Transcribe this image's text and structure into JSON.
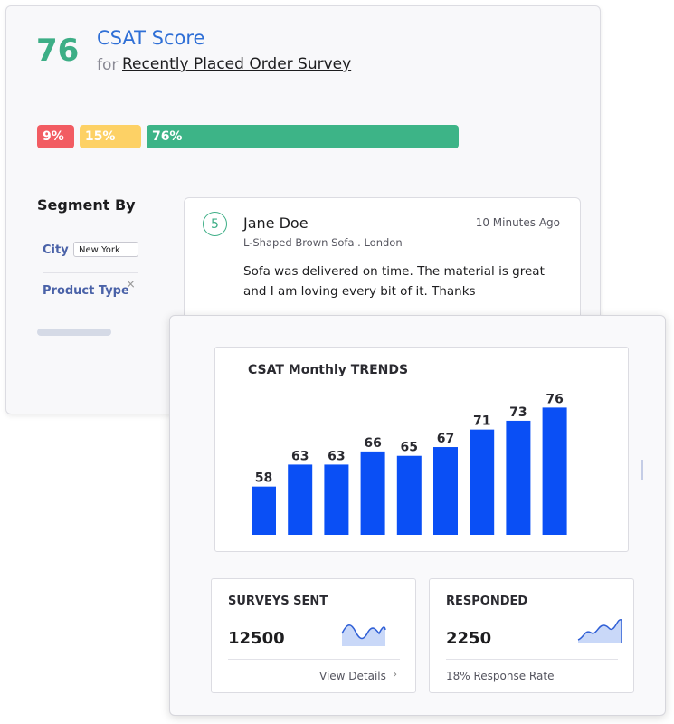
{
  "header": {
    "score": 76,
    "title": "CSAT Score",
    "for": "for",
    "survey": "Recently Placed Order Survey"
  },
  "distribution": {
    "values": [
      9,
      15,
      76
    ],
    "value_labels": [
      "9%",
      "15%",
      "76%"
    ],
    "colors": [
      "#f25c62",
      "#fdd165",
      "#3db487"
    ]
  },
  "segment": {
    "title": "Segment By",
    "filters": [
      {
        "label": "City",
        "value": "New York"
      },
      {
        "label": "Product Type"
      }
    ]
  },
  "review": {
    "rating": 5,
    "name": "Jane Doe",
    "time": "10 Minutes Ago",
    "product": "L-Shaped Brown Sofa . London",
    "text": "Sofa was delivered on time. The material is great and I am loving every bit of it. Thanks"
  },
  "chart_data": {
    "type": "bar",
    "title": "CSAT Monthly TRENDS",
    "categories": [
      null,
      null,
      null,
      null,
      null,
      null,
      null,
      null,
      null
    ],
    "values": [
      58,
      63,
      63,
      66,
      65,
      67,
      71,
      73,
      76
    ],
    "color": "#0a4ff5",
    "ylim": [
      47,
      80
    ]
  },
  "stats": [
    {
      "title": "SURVEYS SENT",
      "value": 12500,
      "link": "View Details"
    },
    {
      "title": "RESPONDED",
      "value": 2250,
      "note": "18% Response Rate"
    }
  ]
}
